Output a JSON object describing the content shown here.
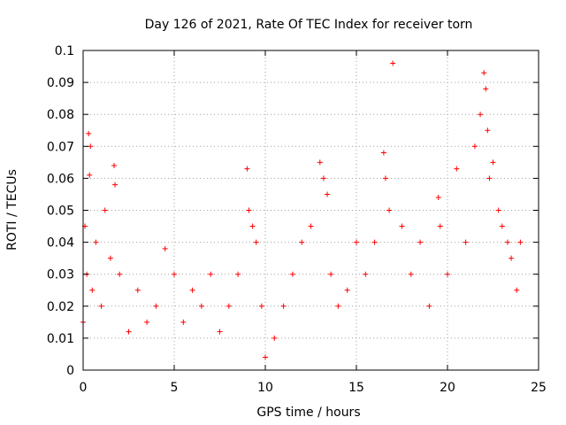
{
  "chart_data": {
    "type": "scatter",
    "title": "Day 126 of 2021, Rate Of TEC Index for receiver torn",
    "xlabel": "GPS time / hours",
    "ylabel": "ROTI / TECUs",
    "xlim": [
      0,
      25
    ],
    "ylim": [
      0,
      0.1
    ],
    "xticks": [
      0,
      5,
      10,
      15,
      20,
      25
    ],
    "xtick_labels": [
      "0",
      "5",
      "10",
      "15",
      "20",
      "25"
    ],
    "yticks": [
      0,
      0.01,
      0.02,
      0.03,
      0.04,
      0.05,
      0.06,
      0.07,
      0.08,
      0.09,
      0.1
    ],
    "ytick_labels": [
      "0",
      "0.01",
      "0.02",
      "0.03",
      "0.04",
      "0.05",
      "0.06",
      "0.07",
      "0.08",
      "0.09",
      "0.1"
    ],
    "grid": true,
    "marker": "+",
    "color": "#ff0000",
    "series": [
      {
        "name": "ROTI",
        "x": [
          0.0,
          0.1,
          0.2,
          0.3,
          0.35,
          0.4,
          0.5,
          0.7,
          1.0,
          1.2,
          1.5,
          1.7,
          1.75,
          2.0,
          2.5,
          3.0,
          3.5,
          4.0,
          4.5,
          5.0,
          5.5,
          6.0,
          6.5,
          7.0,
          7.5,
          8.0,
          8.5,
          9.0,
          9.1,
          9.3,
          9.5,
          9.8,
          10.0,
          10.5,
          11.0,
          11.5,
          12.0,
          12.5,
          13.0,
          13.2,
          13.4,
          13.6,
          14.0,
          14.5,
          15.0,
          15.5,
          16.0,
          16.5,
          16.6,
          16.8,
          17.0,
          17.5,
          18.0,
          18.5,
          19.0,
          19.5,
          19.6,
          20.0,
          20.5,
          21.0,
          21.5,
          21.8,
          22.0,
          22.1,
          22.2,
          22.3,
          22.5,
          22.8,
          23.0,
          23.3,
          23.5,
          23.8,
          24.0
        ],
        "y": [
          0.015,
          0.045,
          0.03,
          0.074,
          0.061,
          0.07,
          0.025,
          0.04,
          0.02,
          0.05,
          0.035,
          0.064,
          0.058,
          0.03,
          0.012,
          0.025,
          0.015,
          0.02,
          0.038,
          0.03,
          0.015,
          0.025,
          0.02,
          0.03,
          0.012,
          0.02,
          0.03,
          0.063,
          0.05,
          0.045,
          0.04,
          0.02,
          0.004,
          0.01,
          0.02,
          0.03,
          0.04,
          0.045,
          0.065,
          0.06,
          0.055,
          0.03,
          0.02,
          0.025,
          0.04,
          0.03,
          0.04,
          0.068,
          0.06,
          0.05,
          0.096,
          0.045,
          0.03,
          0.04,
          0.02,
          0.054,
          0.045,
          0.03,
          0.063,
          0.04,
          0.07,
          0.08,
          0.093,
          0.088,
          0.075,
          0.06,
          0.065,
          0.05,
          0.045,
          0.04,
          0.035,
          0.025,
          0.04
        ]
      }
    ]
  }
}
